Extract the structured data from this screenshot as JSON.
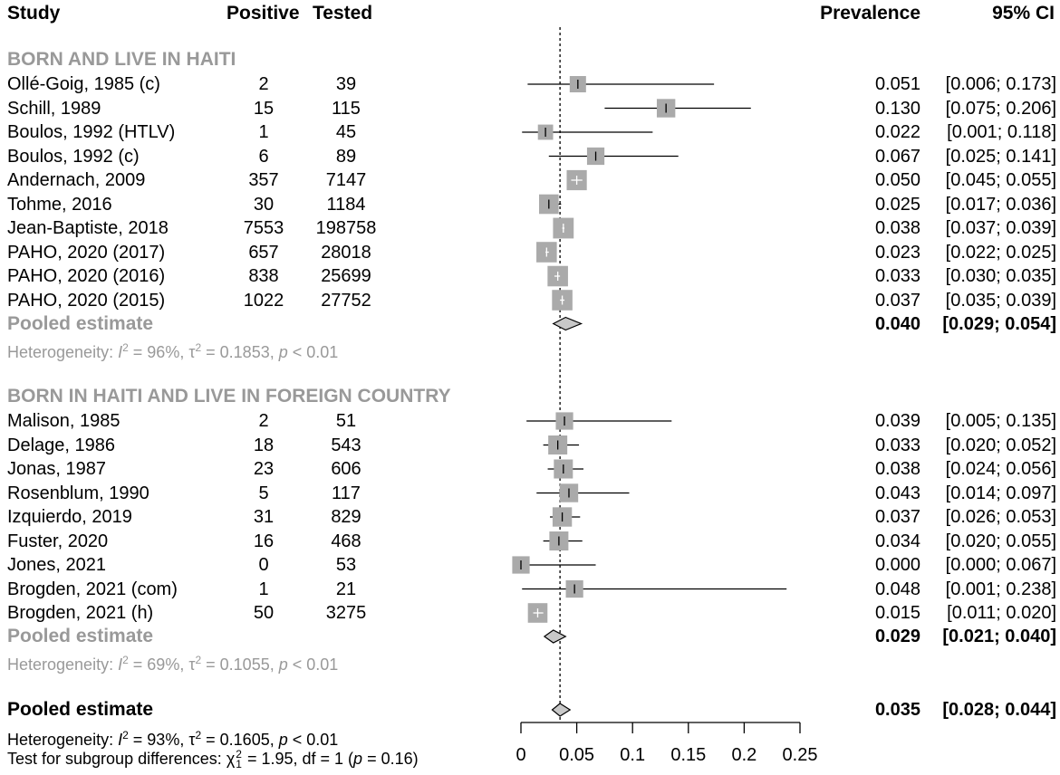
{
  "headers": {
    "study": "Study",
    "positive": "Positive",
    "tested": "Tested",
    "prevalence": "Prevalence",
    "ci": "95% CI"
  },
  "colors": {
    "box": "#aaaaaa",
    "group_label": "#999999",
    "diamond_fill": "#c8c8c8",
    "line": "#000000"
  },
  "chart_data": {
    "type": "forest",
    "xlim": [
      0,
      0.25
    ],
    "axis_ticks": [
      "0",
      "0.05",
      "0.1",
      "0.15",
      "0.2",
      "0.25"
    ],
    "tick_values": [
      0,
      0.05,
      0.1,
      0.15,
      0.2,
      0.25
    ],
    "reference_line": 0.035,
    "groups": [
      {
        "name": "BORN AND LIVE IN HAITI",
        "studies": [
          {
            "study": "Ollé-Goig, 1985 (c)",
            "positive": "2",
            "tested": "39",
            "prev": "0.051",
            "ci": "[0.006; 0.173]",
            "est": 0.051,
            "lo": 0.006,
            "hi": 0.173,
            "weight": 0.5
          },
          {
            "study": "Schill, 1989",
            "positive": "15",
            "tested": "115",
            "prev": "0.130",
            "ci": "[0.075; 0.206]",
            "est": 0.13,
            "lo": 0.075,
            "hi": 0.206,
            "weight": 0.7
          },
          {
            "study": "Boulos, 1992 (HTLV)",
            "positive": "1",
            "tested": "45",
            "prev": "0.022",
            "ci": "[0.001; 0.118]",
            "est": 0.022,
            "lo": 0.001,
            "hi": 0.118,
            "weight": 0.4
          },
          {
            "study": "Boulos, 1992 (c)",
            "positive": "6",
            "tested": "89",
            "prev": "0.067",
            "ci": "[0.025; 0.141]",
            "est": 0.067,
            "lo": 0.025,
            "hi": 0.141,
            "weight": 0.6
          },
          {
            "study": "Andernach, 2009",
            "positive": "357",
            "tested": "7147",
            "prev": "0.050",
            "ci": "[0.045; 0.055]",
            "est": 0.05,
            "lo": 0.045,
            "hi": 0.055,
            "weight": 0.85
          },
          {
            "study": "Tohme, 2016",
            "positive": "30",
            "tested": "1184",
            "prev": "0.025",
            "ci": "[0.017; 0.036]",
            "est": 0.025,
            "lo": 0.017,
            "hi": 0.036,
            "weight": 0.8
          },
          {
            "study": "Jean-Baptiste, 2018",
            "positive": "7553",
            "tested": "198758",
            "prev": "0.038",
            "ci": "[0.037; 0.039]",
            "est": 0.038,
            "lo": 0.037,
            "hi": 0.039,
            "weight": 0.9
          },
          {
            "study": "PAHO, 2020 (2017)",
            "positive": "657",
            "tested": "28018",
            "prev": "0.023",
            "ci": "[0.022; 0.025]",
            "est": 0.023,
            "lo": 0.022,
            "hi": 0.025,
            "weight": 0.88
          },
          {
            "study": "PAHO, 2020 (2016)",
            "positive": "838",
            "tested": "25699",
            "prev": "0.033",
            "ci": "[0.030; 0.035]",
            "est": 0.033,
            "lo": 0.03,
            "hi": 0.035,
            "weight": 0.88
          },
          {
            "study": "PAHO, 2020 (2015)",
            "positive": "1022",
            "tested": "27752",
            "prev": "0.037",
            "ci": "[0.035; 0.039]",
            "est": 0.037,
            "lo": 0.035,
            "hi": 0.039,
            "weight": 0.88
          }
        ],
        "pooled": {
          "label": "Pooled estimate",
          "prev": "0.040",
          "ci": "[0.029; 0.054]",
          "est": 0.04,
          "lo": 0.029,
          "hi": 0.054
        },
        "heterogeneity": {
          "prefix": "Heterogeneity: ",
          "i_sym": "I",
          "i_val": " = 96%, ",
          "tau_sym": "τ",
          "tau_val": " = 0.1853, ",
          "p_sym": "p",
          "p_val": " < 0.01",
          "sup": "2"
        }
      },
      {
        "name": "BORN IN HAITI AND LIVE IN FOREIGN COUNTRY",
        "studies": [
          {
            "study": "Malison, 1985",
            "positive": "2",
            "tested": "51",
            "prev": "0.039",
            "ci": "[0.005; 0.135]",
            "est": 0.039,
            "lo": 0.005,
            "hi": 0.135,
            "weight": 0.6
          },
          {
            "study": "Delage, 1986",
            "positive": "18",
            "tested": "543",
            "prev": "0.033",
            "ci": "[0.020; 0.052]",
            "est": 0.033,
            "lo": 0.02,
            "hi": 0.052,
            "weight": 0.75
          },
          {
            "study": "Jonas, 1987",
            "positive": "23",
            "tested": "606",
            "prev": "0.038",
            "ci": "[0.024; 0.056]",
            "est": 0.038,
            "lo": 0.024,
            "hi": 0.056,
            "weight": 0.75
          },
          {
            "study": "Rosenblum, 1990",
            "positive": "5",
            "tested": "117",
            "prev": "0.043",
            "ci": "[0.014; 0.097]",
            "est": 0.043,
            "lo": 0.014,
            "hi": 0.097,
            "weight": 0.7
          },
          {
            "study": "Izquierdo, 2019",
            "positive": "31",
            "tested": "829",
            "prev": "0.037",
            "ci": "[0.026; 0.053]",
            "est": 0.037,
            "lo": 0.026,
            "hi": 0.053,
            "weight": 0.78
          },
          {
            "study": "Fuster, 2020",
            "positive": "16",
            "tested": "468",
            "prev": "0.034",
            "ci": "[0.020; 0.055]",
            "est": 0.034,
            "lo": 0.02,
            "hi": 0.055,
            "weight": 0.75
          },
          {
            "study": "Jones, 2021",
            "positive": "0",
            "tested": "53",
            "prev": "0.000",
            "ci": "[0.000; 0.067]",
            "est": 0.0,
            "lo": 0.0,
            "hi": 0.067,
            "weight": 0.6
          },
          {
            "study": "Brogden, 2021 (com)",
            "positive": "1",
            "tested": "21",
            "prev": "0.048",
            "ci": "[0.001; 0.238]",
            "est": 0.048,
            "lo": 0.001,
            "hi": 0.238,
            "weight": 0.6
          },
          {
            "study": "Brogden, 2021 (h)",
            "positive": "50",
            "tested": "3275",
            "prev": "0.015",
            "ci": "[0.011; 0.020]",
            "est": 0.015,
            "lo": 0.011,
            "hi": 0.02,
            "weight": 0.8
          }
        ],
        "pooled": {
          "label": "Pooled estimate",
          "prev": "0.029",
          "ci": "[0.021; 0.040]",
          "est": 0.029,
          "lo": 0.021,
          "hi": 0.04
        },
        "heterogeneity": {
          "prefix": "Heterogeneity: ",
          "i_sym": "I",
          "i_val": " = 69%, ",
          "tau_sym": "τ",
          "tau_val": " = 0.1055, ",
          "p_sym": "p",
          "p_val": " < 0.01",
          "sup": "2"
        }
      }
    ],
    "overall": {
      "label": "Pooled estimate",
      "prev": "0.035",
      "ci": "[0.028; 0.044]",
      "est": 0.035,
      "lo": 0.028,
      "hi": 0.044,
      "heterogeneity": {
        "prefix": "Heterogeneity: ",
        "i_sym": "I",
        "i_val": " = 93%, ",
        "tau_sym": "τ",
        "tau_val": " = 0.1605, ",
        "p_sym": "p",
        "p_val": " < 0.01",
        "sup": "2"
      },
      "subgroup_test": {
        "prefix": "Test for subgroup differences: ",
        "chi_sym": "χ",
        "chi_sub": "1",
        "chi_sup": "2",
        "rest1": " = 1.95, df = 1 (",
        "p_sym": "p",
        "rest2": " = 0.16)"
      }
    }
  }
}
